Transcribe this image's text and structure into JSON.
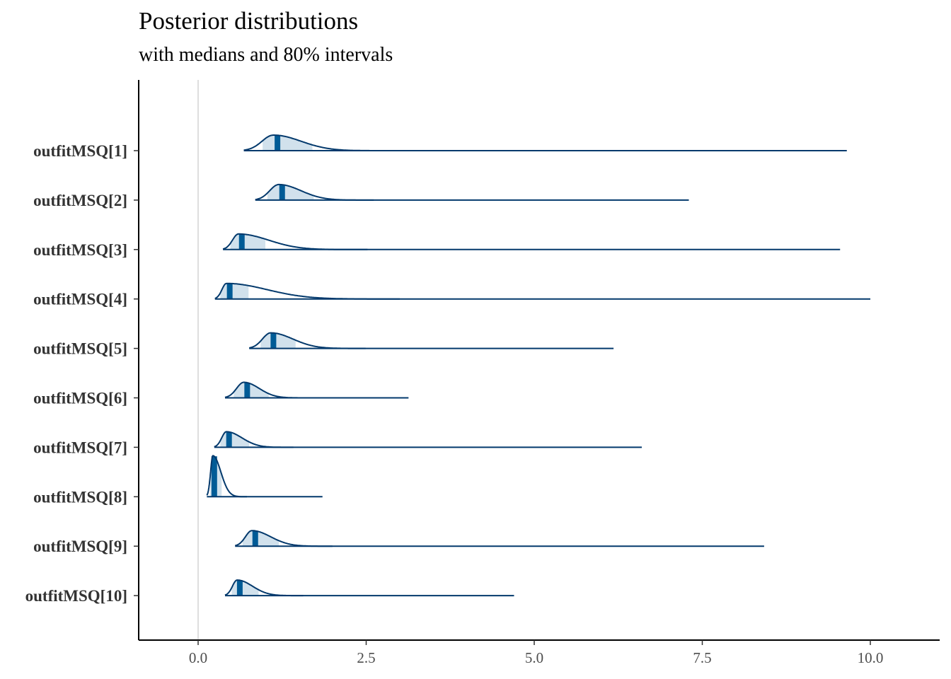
{
  "header": {
    "title": "Posterior distributions",
    "subtitle": "with medians and 80% intervals"
  },
  "colors": {
    "fill": "#d1e1ec",
    "outline": "#03396c",
    "median": "#005b96",
    "zero_line": "#dedede",
    "axis": "#000000"
  },
  "chart_data": {
    "type": "ridgeline",
    "title": "Posterior distributions",
    "subtitle": "with medians and 80% intervals",
    "xlim": [
      -0.87,
      11.13
    ],
    "x_ticks": [
      0.0,
      2.5,
      5.0,
      7.5,
      10.0
    ],
    "x_tick_labels": [
      "0.0",
      "2.5",
      "5.0",
      "7.5",
      "10.0"
    ],
    "vline_at": 0,
    "grid": false,
    "series": [
      {
        "label": "outfitMSQ[1]",
        "min": 0.68,
        "max": 9.65,
        "mode": 1.12,
        "median": 1.18,
        "q10": 0.96,
        "q90": 1.7,
        "tail": 2.27
      },
      {
        "label": "outfitMSQ[2]",
        "min": 0.85,
        "max": 7.3,
        "mode": 1.2,
        "median": 1.25,
        "q10": 1.03,
        "q90": 1.72,
        "tail": 2.12
      },
      {
        "label": "outfitMSQ[3]",
        "min": 0.37,
        "max": 9.55,
        "mode": 0.6,
        "median": 0.65,
        "q10": 0.48,
        "q90": 1.0,
        "tail": 1.85
      },
      {
        "label": "outfitMSQ[4]",
        "min": 0.25,
        "max": 10.0,
        "mode": 0.42,
        "median": 0.47,
        "q10": 0.33,
        "q90": 0.75,
        "tail": 2.1
      },
      {
        "label": "outfitMSQ[5]",
        "min": 0.76,
        "max": 6.18,
        "mode": 1.08,
        "median": 1.12,
        "q10": 0.93,
        "q90": 1.45,
        "tail": 2.0
      },
      {
        "label": "outfitMSQ[6]",
        "min": 0.4,
        "max": 3.13,
        "mode": 0.68,
        "median": 0.73,
        "q10": 0.53,
        "q90": 1.05,
        "tail": 1.32
      },
      {
        "label": "outfitMSQ[7]",
        "min": 0.24,
        "max": 6.6,
        "mode": 0.42,
        "median": 0.46,
        "q10": 0.33,
        "q90": 0.76,
        "tail": 1.07
      },
      {
        "label": "outfitMSQ[8]",
        "min": 0.13,
        "max": 1.85,
        "mode": 0.22,
        "median": 0.24,
        "q10": 0.18,
        "q90": 0.35,
        "tail": 0.55
      },
      {
        "label": "outfitMSQ[9]",
        "min": 0.55,
        "max": 8.42,
        "mode": 0.8,
        "median": 0.85,
        "q10": 0.66,
        "q90": 1.2,
        "tail": 1.58
      },
      {
        "label": "outfitMSQ[10]",
        "min": 0.4,
        "max": 4.7,
        "mode": 0.58,
        "median": 0.62,
        "q10": 0.5,
        "q90": 0.9,
        "tail": 1.22
      }
    ]
  }
}
